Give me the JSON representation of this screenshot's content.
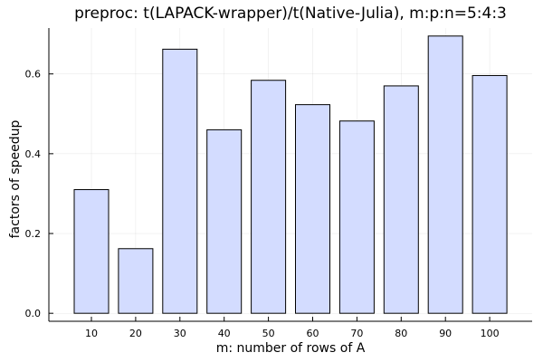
{
  "chart_data": {
    "type": "bar",
    "title": "preproc: t(LAPACK-wrapper)/t(Native-Julia), m:p:n=5:4:3",
    "xlabel": "m: number of rows of A",
    "ylabel": "factors of speedup",
    "categories": [
      "10",
      "20",
      "30",
      "40",
      "50",
      "60",
      "70",
      "80",
      "90",
      "100"
    ],
    "values": [
      0.31,
      0.162,
      0.662,
      0.46,
      0.584,
      0.523,
      0.482,
      0.57,
      0.695,
      0.596
    ],
    "yticks": [
      "0.0",
      "0.2",
      "0.4",
      "0.6"
    ],
    "ylim": [
      -0.02,
      0.715
    ],
    "grid": true,
    "legend": "none",
    "bar_color": "#d3dcff"
  }
}
